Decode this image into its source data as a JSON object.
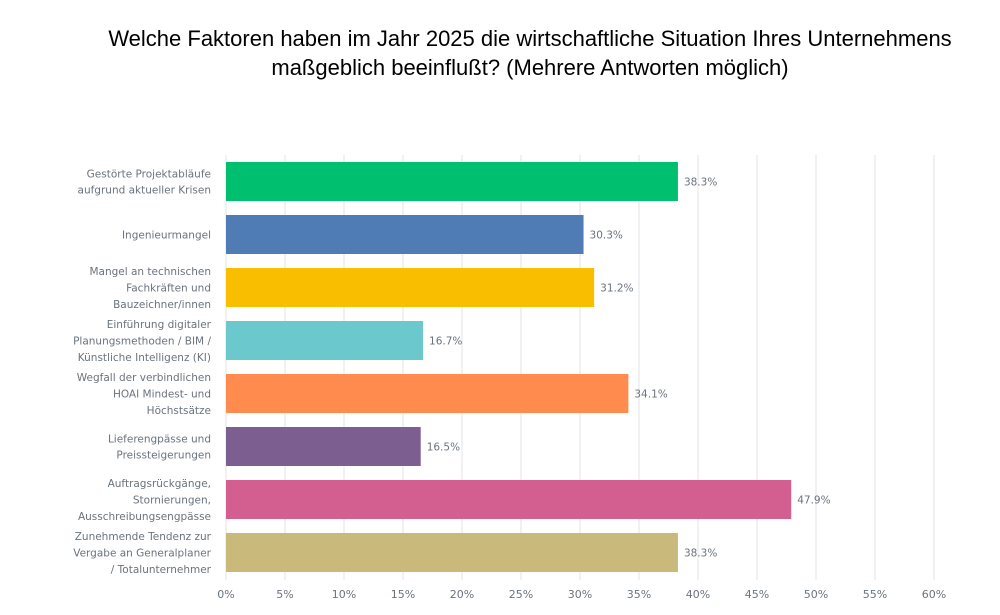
{
  "chart_data": {
    "type": "bar",
    "orientation": "horizontal",
    "title": "Welche Faktoren haben im Jahr 2025 die wirtschaftliche Situation Ihres Unternehmens maßgeblich beeinflußt? (Mehrere Antworten möglich)",
    "categories": [
      [
        "Gestörte Projektabläufe",
        "aufgrund aktueller Krisen"
      ],
      [
        "Ingenieurmangel"
      ],
      [
        "Mangel an technischen",
        "Fachkräften und",
        "Bauzeichner/innen"
      ],
      [
        "Einführung digitaler",
        "Planungsmethoden / BIM /",
        "Künstliche Intelligenz (KI)"
      ],
      [
        "Wegfall der verbindlichen",
        "HOAI Mindest- und",
        "Höchstsätze"
      ],
      [
        "Lieferengpässe und",
        "Preissteigerungen"
      ],
      [
        "Auftragsrückgänge,",
        "Stornierungen,",
        "Ausschreibungsengpässe"
      ],
      [
        "Zunehmende Tendenz zur",
        "Vergabe an Generalplaner",
        "/ Totalunternehmer"
      ]
    ],
    "values": [
      38.3,
      30.3,
      31.2,
      16.7,
      34.1,
      16.5,
      47.9,
      38.3
    ],
    "value_labels": [
      "38.3%",
      "30.3%",
      "31.2%",
      "16.7%",
      "34.1%",
      "16.5%",
      "47.9%",
      "38.3%"
    ],
    "colors": [
      "#00bf6f",
      "#507cb6",
      "#f9be00",
      "#6bc8cd",
      "#ff8b4f",
      "#7d5e90",
      "#d25f90",
      "#c9b97a"
    ],
    "xlim": [
      0,
      60
    ],
    "xticks": [
      "0%",
      "5%",
      "10%",
      "15%",
      "20%",
      "25%",
      "30%",
      "35%",
      "40%",
      "45%",
      "50%",
      "55%",
      "60%"
    ],
    "grid": true,
    "xlabel": "",
    "ylabel": ""
  }
}
